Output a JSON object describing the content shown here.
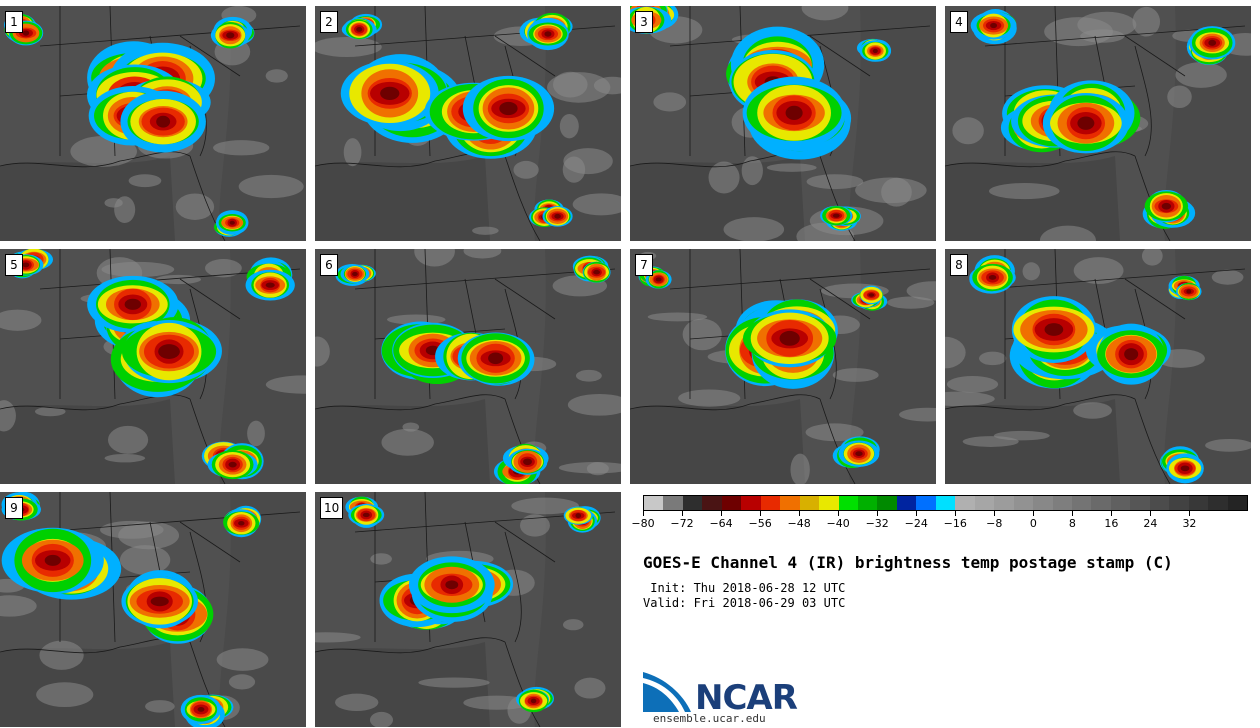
{
  "panels": [
    {
      "label": "1",
      "seed": 11
    },
    {
      "label": "2",
      "seed": 23
    },
    {
      "label": "3",
      "seed": 37
    },
    {
      "label": "4",
      "seed": 41
    },
    {
      "label": "5",
      "seed": 53
    },
    {
      "label": "6",
      "seed": 67
    },
    {
      "label": "7",
      "seed": 71
    },
    {
      "label": "8",
      "seed": 83
    },
    {
      "label": "9",
      "seed": 97
    },
    {
      "label": "10",
      "seed": 101
    }
  ],
  "colorbar": {
    "colors": [
      "#c8c8c8",
      "#7a7a7a",
      "#2e2e2e",
      "#4a1414",
      "#6e0000",
      "#b80000",
      "#e82a00",
      "#f07000",
      "#d8b000",
      "#e8e800",
      "#00e000",
      "#00b000",
      "#008a00",
      "#0024a0",
      "#0070ff",
      "#00e0ff",
      "#b0b0b0",
      "#a6a6a6",
      "#9c9c9c",
      "#929292",
      "#888888",
      "#7e7e7e",
      "#747474",
      "#6a6a6a",
      "#606060",
      "#565656",
      "#4c4c4c",
      "#424242",
      "#383838",
      "#2e2e2e",
      "#242424"
    ],
    "ticks": [
      "−80",
      "−72",
      "−64",
      "−56",
      "−48",
      "−40",
      "−32",
      "−24",
      "−16",
      "−8",
      "0",
      "8",
      "16",
      "24",
      "32"
    ]
  },
  "title": "GOES-E Channel 4 (IR) brightness temp postage stamp (C)",
  "init": " Init: Thu 2018-06-28 12 UTC",
  "valid": "Valid: Fri 2018-06-29 03 UTC",
  "logo": {
    "text": "NCAR",
    "url": "ensemble.ucar.edu"
  }
}
